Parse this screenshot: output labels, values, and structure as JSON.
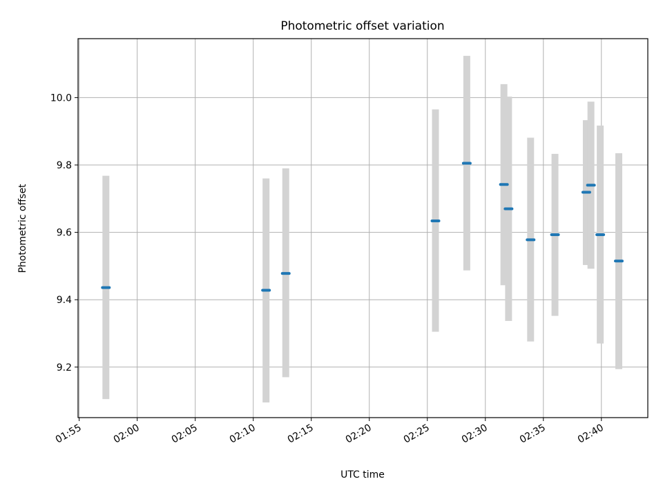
{
  "chart_data": {
    "type": "scatter",
    "title": "Photometric offset variation",
    "xlabel": "UTC time",
    "ylabel": "Photometric offset",
    "x_ticks": [
      "01:55",
      "02:00",
      "02:05",
      "02:10",
      "02:15",
      "02:20",
      "02:25",
      "02:30",
      "02:35",
      "02:40"
    ],
    "x_tick_minutes": [
      115,
      120,
      125,
      130,
      135,
      140,
      145,
      150,
      155,
      160
    ],
    "y_ticks": [
      "9.2",
      "9.4",
      "9.6",
      "9.8",
      "10.0"
    ],
    "y_tick_values": [
      9.2,
      9.4,
      9.6,
      9.8,
      10.0
    ],
    "xlim_minutes": [
      114.9,
      164.0
    ],
    "ylim": [
      9.05,
      10.175
    ],
    "grid": true,
    "colors": {
      "point": "#1f77b4",
      "errorbar": "#d3d3d3",
      "grid": "#b0b0b0"
    },
    "points": [
      {
        "t_minutes": 117.3,
        "y": 9.436,
        "ylow": 9.105,
        "yhigh": 9.768
      },
      {
        "t_minutes": 131.1,
        "y": 9.428,
        "ylow": 9.095,
        "yhigh": 9.76
      },
      {
        "t_minutes": 132.8,
        "y": 9.478,
        "ylow": 9.17,
        "yhigh": 9.79
      },
      {
        "t_minutes": 145.7,
        "y": 9.634,
        "ylow": 9.305,
        "yhigh": 9.965
      },
      {
        "t_minutes": 148.4,
        "y": 9.805,
        "ylow": 9.487,
        "yhigh": 10.124
      },
      {
        "t_minutes": 151.6,
        "y": 9.742,
        "ylow": 9.443,
        "yhigh": 10.04
      },
      {
        "t_minutes": 152.0,
        "y": 9.67,
        "ylow": 9.337,
        "yhigh": 10.003
      },
      {
        "t_minutes": 153.9,
        "y": 9.578,
        "ylow": 9.276,
        "yhigh": 9.881
      },
      {
        "t_minutes": 156.0,
        "y": 9.593,
        "ylow": 9.352,
        "yhigh": 9.833
      },
      {
        "t_minutes": 158.7,
        "y": 9.719,
        "ylow": 9.503,
        "yhigh": 9.933
      },
      {
        "t_minutes": 159.1,
        "y": 9.74,
        "ylow": 9.492,
        "yhigh": 9.988
      },
      {
        "t_minutes": 159.9,
        "y": 9.593,
        "ylow": 9.27,
        "yhigh": 9.917
      },
      {
        "t_minutes": 161.5,
        "y": 9.515,
        "ylow": 9.194,
        "yhigh": 9.835
      }
    ]
  }
}
